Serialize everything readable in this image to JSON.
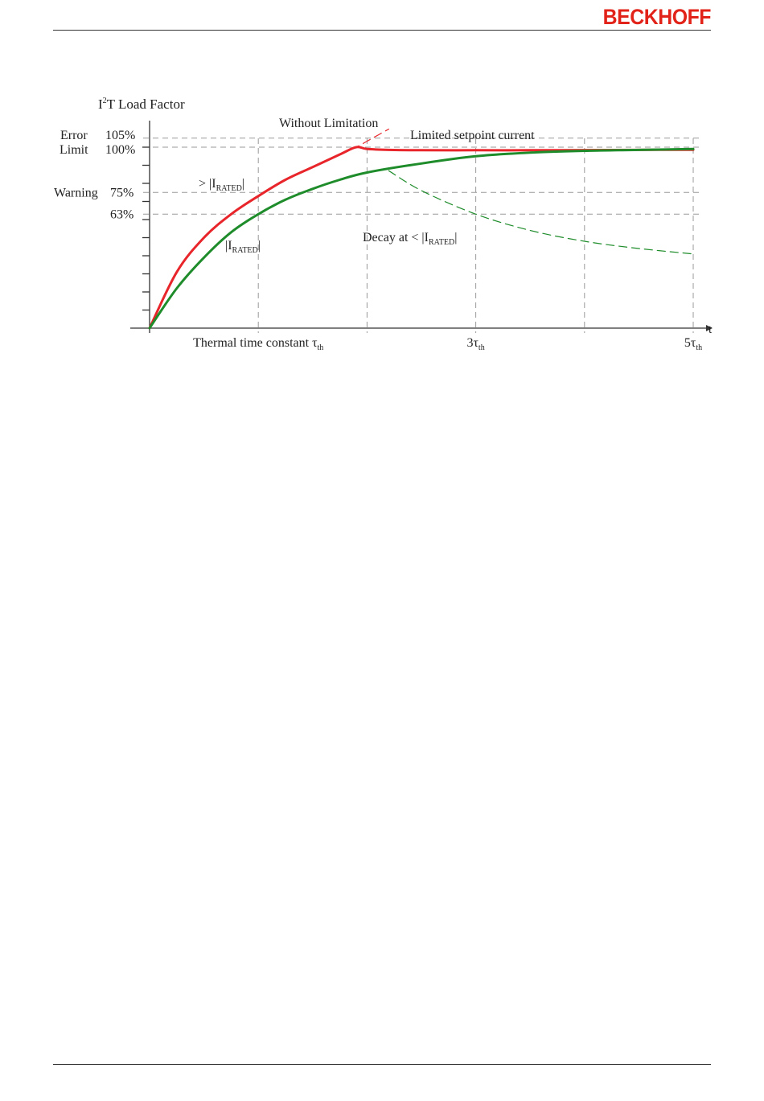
{
  "header": {
    "brand": "BECKHOFF"
  },
  "chart_data": {
    "type": "line",
    "title": "I²T Load Factor",
    "title_main": "I",
    "title_sup": "2",
    "title_rest": "T Load Factor",
    "xlabel": "t",
    "x_ticks": [
      {
        "x": 1,
        "main": "Thermal time constant τ",
        "sub": "th"
      },
      {
        "x": 3,
        "main": "3τ",
        "sub": "th"
      },
      {
        "x": 5,
        "main": "5τ",
        "sub": "th"
      }
    ],
    "y_levels": [
      {
        "value": 105,
        "name": "Error",
        "label": "105%"
      },
      {
        "value": 100,
        "name": "Limit",
        "label": "100%"
      },
      {
        "value": 75,
        "name": "Warning",
        "label": "75%"
      },
      {
        "value": 63,
        "name": "",
        "label": "63%"
      }
    ],
    "xlim": [
      0,
      5.2
    ],
    "ylim": [
      0,
      105
    ],
    "annotations": {
      "without_limitation": "Without Limitation",
      "limited_setpoint": "Limited setpoint current",
      "above_rated_prefix": "> |I",
      "above_rated_sub": "RATED",
      "above_rated_suffix": "|",
      "rated_prefix": "|I",
      "rated_sub": "RATED",
      "rated_suffix": "|",
      "decay_prefix": "Decay at < |I",
      "decay_sub": "RATED",
      "decay_suffix": "|"
    },
    "series": [
      {
        "key": "over_current",
        "color": "#e8252a",
        "x": [
          0,
          0.25,
          0.5,
          0.75,
          1.0,
          1.25,
          1.5,
          1.75,
          1.9,
          2.0,
          2.2,
          2.5,
          3.0,
          3.5,
          4.0,
          4.5,
          5.0
        ],
        "y": [
          0,
          31,
          50,
          63,
          73,
          82,
          89,
          96,
          100,
          99,
          98.5,
          98.3,
          98.3,
          98.3,
          98.4,
          98.5,
          98.6
        ]
      },
      {
        "key": "rated_current",
        "color": "#1e8c2a",
        "x": [
          0,
          0.25,
          0.5,
          0.75,
          1.0,
          1.25,
          1.5,
          1.75,
          2.0,
          2.5,
          3.0,
          3.5,
          4.0,
          4.5,
          5.0
        ],
        "y": [
          0,
          22,
          39,
          53,
          63,
          71,
          77,
          82,
          86,
          91,
          95,
          97,
          98,
          98.5,
          99
        ]
      },
      {
        "key": "without_limitation",
        "color": "#e8252a",
        "dashed": true,
        "x": [
          1.75,
          1.9,
          2.05,
          2.2
        ],
        "y": [
          96,
          100,
          105,
          110
        ]
      },
      {
        "key": "decay",
        "color": "#1e8c2a",
        "dashed": true,
        "x": [
          2.2,
          2.5,
          3.0,
          3.5,
          4.0,
          4.5,
          5.0
        ],
        "y": [
          87,
          76,
          63,
          54,
          48,
          44,
          41
        ]
      }
    ]
  }
}
